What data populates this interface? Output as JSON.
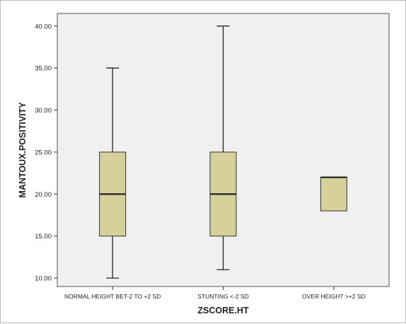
{
  "chart_data": {
    "type": "boxplot",
    "xlabel": "ZSCORE.HT",
    "ylabel": "MANTOUX.POSITIVITY",
    "ylim": [
      9,
      41.5
    ],
    "yticks": [
      10,
      15,
      20,
      25,
      30,
      35,
      40
    ],
    "ytick_labels": [
      "10.00",
      "15.00",
      "20.00",
      "25.00",
      "30.00",
      "35.00",
      "40.00"
    ],
    "categories": [
      "NORMAL HEIGHT BET-2 TO +2 SD",
      "STUNTING <-2 SD",
      "OVER HEIGHT >+2 SD"
    ],
    "boxes": [
      {
        "category": "NORMAL HEIGHT BET-2 TO +2 SD",
        "min": 10,
        "q1": 15,
        "median": 20,
        "q3": 25,
        "max": 35
      },
      {
        "category": "STUNTING <-2 SD",
        "min": 11,
        "q1": 15,
        "median": 20,
        "q3": 25,
        "max": 40
      },
      {
        "category": "OVER HEIGHT >+2 SD",
        "min": 18,
        "q1": 18,
        "median": 22,
        "q3": 22,
        "max": 22
      }
    ],
    "grid": false,
    "colors": {
      "box_fill": "#d6d19a",
      "box_stroke": "#333333",
      "plot_background": "#f0f0f0"
    }
  }
}
